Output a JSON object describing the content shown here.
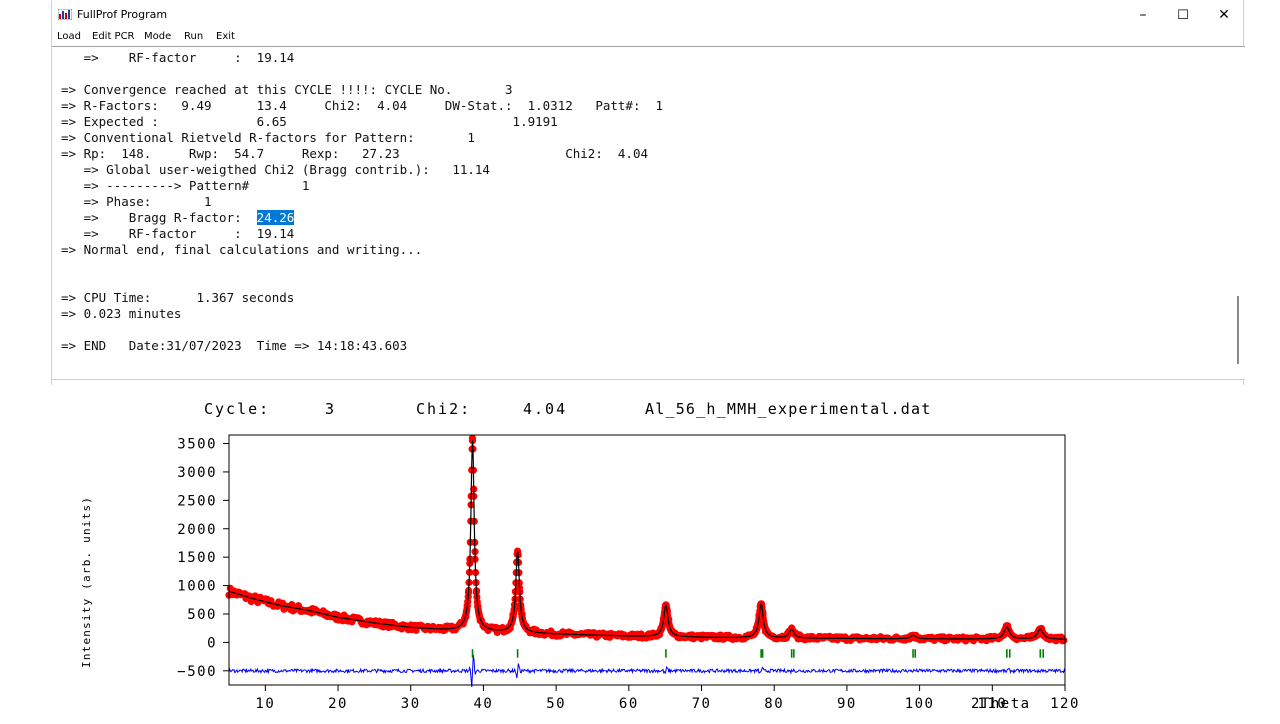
{
  "window": {
    "title": "FullProf Program",
    "minimize": "–",
    "maximize": "☐",
    "close": "✕"
  },
  "menu": [
    "Load",
    "Edit PCR",
    "Mode",
    "Run",
    "Exit"
  ],
  "console_lines": [
    "   =>    RF-factor     :  19.14",
    "",
    "=> Convergence reached at this CYCLE !!!!: CYCLE No.       3",
    "=> R-Factors:   9.49      13.4     Chi2:  4.04     DW-Stat.:  1.0312   Patt#:  1",
    "=> Expected :             6.65                              1.9191",
    "=> Conventional Rietveld R-factors for Pattern:       1",
    "=> Rp:  148.     Rwp:  54.7     Rexp:   27.23                      Chi2:  4.04",
    "   => Global user-weigthed Chi2 (Bragg contrib.):   11.14",
    "   => ---------> Pattern#       1",
    "   => Phase:       1",
    "   =>    Bragg R-factor:  ",
    "   =>    RF-factor     :  19.14",
    "=> Normal end, final calculations and writing...",
    "",
    "",
    "=> CPU Time:      1.367 seconds",
    "=> 0.023 minutes",
    "",
    "=> END   Date:31/07/2023  Time => 14:18:43.603"
  ],
  "selected_text": "24.26",
  "plot": {
    "header": {
      "cycle_label": "Cycle:",
      "cycle_value": "3",
      "chi2_label": "Chi2:",
      "chi2_value": "4.04",
      "filename": "Al_56_h_MMH_experimental.dat"
    }
  },
  "chart_data": {
    "type": "line",
    "title": "",
    "xlabel": "2Theta",
    "ylabel": "Intensity (arb. units)",
    "xlim": [
      5,
      120
    ],
    "ylim": [
      -750,
      3650
    ],
    "xticks": [
      10,
      20,
      30,
      40,
      50,
      60,
      70,
      80,
      90,
      100,
      110,
      120
    ],
    "yticks": [
      -500,
      0,
      500,
      1000,
      1500,
      2000,
      2500,
      3000,
      3500
    ],
    "background": {
      "x": [
        5,
        8,
        12,
        16,
        20,
        25,
        30,
        35,
        40,
        50,
        60,
        70,
        80,
        90,
        100,
        110,
        120
      ],
      "y": [
        900,
        780,
        650,
        560,
        440,
        340,
        260,
        215,
        190,
        145,
        110,
        90,
        75,
        68,
        62,
        58,
        55
      ]
    },
    "peaks": [
      {
        "pos": 38.5,
        "height": 3350,
        "width": 0.28
      },
      {
        "pos": 44.7,
        "height": 1430,
        "width": 0.3
      },
      {
        "pos": 65.1,
        "height": 560,
        "width": 0.35
      },
      {
        "pos": 78.2,
        "height": 600,
        "width": 0.35
      },
      {
        "pos": 82.4,
        "height": 150,
        "width": 0.4
      },
      {
        "pos": 99.1,
        "height": 60,
        "width": 0.45
      },
      {
        "pos": 112.0,
        "height": 210,
        "width": 0.45
      },
      {
        "pos": 116.6,
        "height": 180,
        "width": 0.45
      }
    ],
    "bragg_positions": [
      38.5,
      44.7,
      65.1,
      78.2,
      78.4,
      82.4,
      82.7,
      99.1,
      99.4,
      112.0,
      112.4,
      116.6,
      117.0
    ],
    "difference_offset": -500,
    "series": [
      {
        "name": "Yobs",
        "color": "#ff0000"
      },
      {
        "name": "Ycalc",
        "color": "#000000"
      },
      {
        "name": "Yobs-Ycalc",
        "color": "#0000ff"
      },
      {
        "name": "Bragg_position",
        "color": "#008000"
      }
    ]
  }
}
